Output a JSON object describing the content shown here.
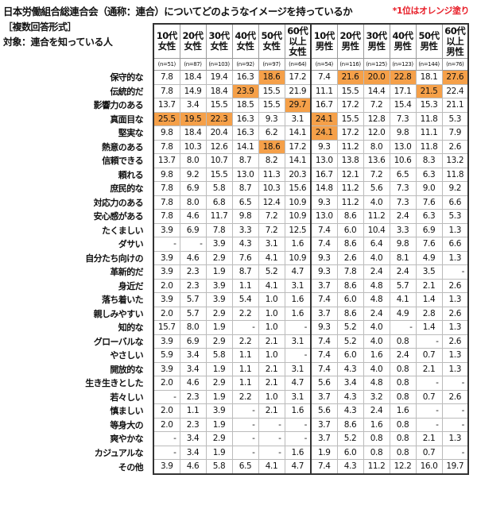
{
  "title": "日本労働組合総連合会（通称：連合）についてどのようなイメージを持っているか",
  "note": "*1位はオレンジ塗り",
  "format": "［複数回答形式］",
  "target": "対象：連合を知っている人",
  "highlight_color": "#f5a049",
  "columns": [
    {
      "label": [
        "10代",
        "女性"
      ],
      "n": "(n=51)"
    },
    {
      "label": [
        "20代",
        "女性"
      ],
      "n": "(n=87)"
    },
    {
      "label": [
        "30代",
        "女性"
      ],
      "n": "(n=103)"
    },
    {
      "label": [
        "40代",
        "女性"
      ],
      "n": "(n=92)"
    },
    {
      "label": [
        "50代",
        "女性"
      ],
      "n": "(n=97)"
    },
    {
      "label": [
        "60代",
        "以上",
        "女性"
      ],
      "n": "(n=64)"
    },
    {
      "label": [
        "10代",
        "男性"
      ],
      "n": "(n=54)"
    },
    {
      "label": [
        "20代",
        "男性"
      ],
      "n": "(n=116)"
    },
    {
      "label": [
        "30代",
        "男性"
      ],
      "n": "(n=125)"
    },
    {
      "label": [
        "40代",
        "男性"
      ],
      "n": "(n=123)"
    },
    {
      "label": [
        "50代",
        "男性"
      ],
      "n": "(n=144)"
    },
    {
      "label": [
        "60代",
        "以上",
        "男性"
      ],
      "n": "(n=76)"
    }
  ],
  "rows": [
    {
      "label": "保守的な",
      "values": [
        "7.8",
        "18.4",
        "19.4",
        "16.3",
        "18.6",
        "17.2",
        "7.4",
        "21.6",
        "20.0",
        "22.8",
        "18.1",
        "27.6"
      ],
      "top": [
        4,
        7,
        8,
        9,
        11
      ]
    },
    {
      "label": "伝統的だ",
      "values": [
        "7.8",
        "14.9",
        "18.4",
        "23.9",
        "15.5",
        "21.9",
        "11.1",
        "15.5",
        "14.4",
        "17.1",
        "21.5",
        "22.4"
      ],
      "top": [
        3,
        10
      ]
    },
    {
      "label": "影響力のある",
      "values": [
        "13.7",
        "3.4",
        "15.5",
        "18.5",
        "15.5",
        "29.7",
        "16.7",
        "17.2",
        "7.2",
        "15.4",
        "15.3",
        "21.1"
      ],
      "top": [
        5
      ]
    },
    {
      "label": "真面目な",
      "values": [
        "25.5",
        "19.5",
        "22.3",
        "16.3",
        "9.3",
        "3.1",
        "24.1",
        "15.5",
        "12.8",
        "7.3",
        "11.8",
        "5.3"
      ],
      "top": [
        0,
        1,
        2,
        6
      ]
    },
    {
      "label": "堅実な",
      "values": [
        "9.8",
        "18.4",
        "20.4",
        "16.3",
        "6.2",
        "14.1",
        "24.1",
        "17.2",
        "12.0",
        "9.8",
        "11.1",
        "7.9"
      ],
      "top": [
        6
      ]
    },
    {
      "label": "熱意のある",
      "values": [
        "7.8",
        "10.3",
        "12.6",
        "14.1",
        "18.6",
        "17.2",
        "9.3",
        "11.2",
        "8.0",
        "13.0",
        "11.8",
        "2.6"
      ],
      "top": [
        4
      ]
    },
    {
      "label": "信頼できる",
      "values": [
        "13.7",
        "8.0",
        "10.7",
        "8.7",
        "8.2",
        "14.1",
        "13.0",
        "13.8",
        "13.6",
        "10.6",
        "8.3",
        "13.2"
      ],
      "top": []
    },
    {
      "label": "頼れる",
      "values": [
        "9.8",
        "9.2",
        "15.5",
        "13.0",
        "11.3",
        "20.3",
        "16.7",
        "12.1",
        "7.2",
        "6.5",
        "6.3",
        "11.8"
      ],
      "top": []
    },
    {
      "label": "庶民的な",
      "values": [
        "7.8",
        "6.9",
        "5.8",
        "8.7",
        "10.3",
        "15.6",
        "14.8",
        "11.2",
        "5.6",
        "7.3",
        "9.0",
        "9.2"
      ],
      "top": []
    },
    {
      "label": "対応力のある",
      "values": [
        "7.8",
        "8.0",
        "6.8",
        "6.5",
        "12.4",
        "10.9",
        "9.3",
        "11.2",
        "4.0",
        "7.3",
        "7.6",
        "6.6"
      ],
      "top": []
    },
    {
      "label": "安心感がある",
      "values": [
        "7.8",
        "4.6",
        "11.7",
        "9.8",
        "7.2",
        "10.9",
        "13.0",
        "8.6",
        "11.2",
        "2.4",
        "6.3",
        "5.3"
      ],
      "top": []
    },
    {
      "label": "たくましい",
      "values": [
        "3.9",
        "6.9",
        "7.8",
        "3.3",
        "7.2",
        "12.5",
        "7.4",
        "6.0",
        "10.4",
        "3.3",
        "6.9",
        "1.3"
      ],
      "top": []
    },
    {
      "label": "ダサい",
      "values": [
        "-",
        "-",
        "3.9",
        "4.3",
        "3.1",
        "1.6",
        "7.4",
        "8.6",
        "6.4",
        "9.8",
        "7.6",
        "6.6"
      ],
      "top": []
    },
    {
      "label": "自分たち向けの",
      "values": [
        "3.9",
        "4.6",
        "2.9",
        "7.6",
        "4.1",
        "10.9",
        "9.3",
        "2.6",
        "4.0",
        "8.1",
        "4.9",
        "1.3"
      ],
      "top": []
    },
    {
      "label": "革新的だ",
      "values": [
        "3.9",
        "2.3",
        "1.9",
        "8.7",
        "5.2",
        "4.7",
        "9.3",
        "7.8",
        "2.4",
        "2.4",
        "3.5",
        "-"
      ],
      "top": []
    },
    {
      "label": "身近だ",
      "values": [
        "2.0",
        "2.3",
        "3.9",
        "1.1",
        "4.1",
        "3.1",
        "3.7",
        "8.6",
        "4.8",
        "5.7",
        "2.1",
        "2.6"
      ],
      "top": []
    },
    {
      "label": "落ち着いた",
      "values": [
        "3.9",
        "5.7",
        "3.9",
        "5.4",
        "1.0",
        "1.6",
        "7.4",
        "6.0",
        "4.8",
        "4.1",
        "1.4",
        "1.3"
      ],
      "top": []
    },
    {
      "label": "親しみやすい",
      "values": [
        "2.0",
        "5.7",
        "2.9",
        "2.2",
        "1.0",
        "1.6",
        "3.7",
        "8.6",
        "2.4",
        "4.9",
        "2.8",
        "2.6"
      ],
      "top": []
    },
    {
      "label": "知的な",
      "values": [
        "15.7",
        "8.0",
        "1.9",
        "-",
        "1.0",
        "-",
        "9.3",
        "5.2",
        "4.0",
        "-",
        "1.4",
        "1.3"
      ],
      "top": []
    },
    {
      "label": "グローバルな",
      "values": [
        "3.9",
        "6.9",
        "2.9",
        "2.2",
        "2.1",
        "3.1",
        "7.4",
        "5.2",
        "4.0",
        "0.8",
        "-",
        "2.6"
      ],
      "top": []
    },
    {
      "label": "やさしい",
      "values": [
        "5.9",
        "3.4",
        "5.8",
        "1.1",
        "1.0",
        "-",
        "7.4",
        "6.0",
        "1.6",
        "2.4",
        "0.7",
        "1.3"
      ],
      "top": []
    },
    {
      "label": "開放的な",
      "values": [
        "3.9",
        "3.4",
        "1.9",
        "1.1",
        "2.1",
        "3.1",
        "7.4",
        "4.3",
        "4.0",
        "0.8",
        "2.1",
        "1.3"
      ],
      "top": []
    },
    {
      "label": "生き生きとした",
      "values": [
        "2.0",
        "4.6",
        "2.9",
        "1.1",
        "2.1",
        "4.7",
        "5.6",
        "3.4",
        "4.8",
        "0.8",
        "-",
        "-"
      ],
      "top": []
    },
    {
      "label": "若々しい",
      "values": [
        "-",
        "2.3",
        "1.9",
        "2.2",
        "1.0",
        "3.1",
        "3.7",
        "4.3",
        "3.2",
        "0.8",
        "0.7",
        "2.6"
      ],
      "top": []
    },
    {
      "label": "慎ましい",
      "values": [
        "2.0",
        "1.1",
        "3.9",
        "-",
        "2.1",
        "1.6",
        "5.6",
        "4.3",
        "2.4",
        "1.6",
        "-",
        "-"
      ],
      "top": []
    },
    {
      "label": "等身大の",
      "values": [
        "2.0",
        "2.3",
        "1.9",
        "-",
        "-",
        "-",
        "3.7",
        "8.6",
        "1.6",
        "0.8",
        "-",
        "-"
      ],
      "top": []
    },
    {
      "label": "爽やかな",
      "values": [
        "-",
        "3.4",
        "2.9",
        "-",
        "-",
        "-",
        "3.7",
        "5.2",
        "0.8",
        "0.8",
        "2.1",
        "1.3"
      ],
      "top": []
    },
    {
      "label": "カジュアルな",
      "values": [
        "-",
        "3.4",
        "1.9",
        "-",
        "-",
        "1.6",
        "1.9",
        "6.0",
        "0.8",
        "0.8",
        "0.7",
        "-"
      ],
      "top": []
    },
    {
      "label": "その他",
      "values": [
        "3.9",
        "4.6",
        "5.8",
        "6.5",
        "4.1",
        "4.7",
        "7.4",
        "4.3",
        "11.2",
        "12.2",
        "16.0",
        "19.7"
      ],
      "top": []
    }
  ]
}
